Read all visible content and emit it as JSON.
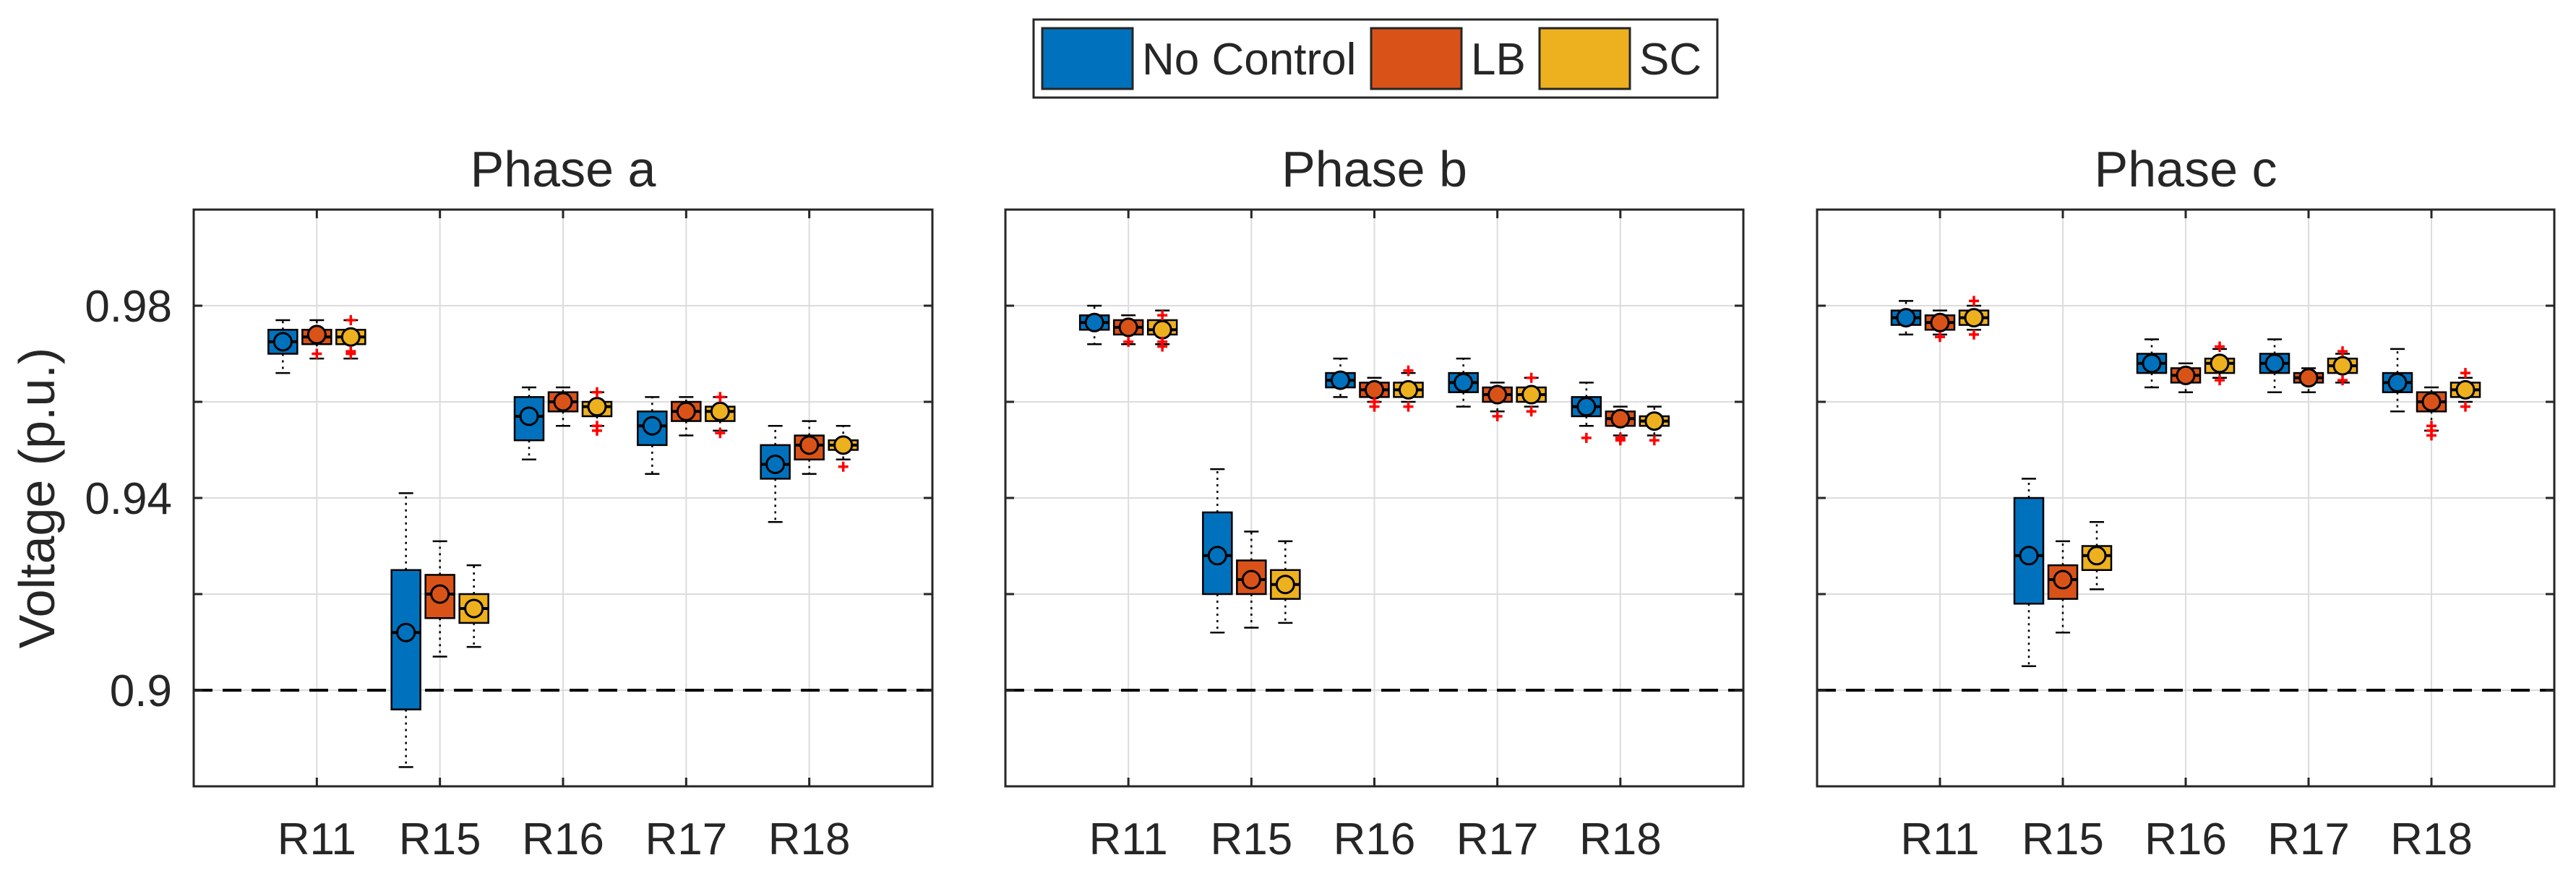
{
  "chart_data": {
    "type": "box",
    "title": "",
    "ylabel": "Voltage (p.u.)",
    "ylim": [
      0.88,
      1.0
    ],
    "yticks": [
      0.98,
      0.94,
      0.9
    ],
    "ytick_labels": [
      "0.98",
      "0.94",
      "0.9"
    ],
    "reference_line": {
      "y": 0.9,
      "style": "dashed"
    },
    "grid": true,
    "legend": {
      "placement": "top-center",
      "entries": [
        {
          "name": "No Control",
          "color": "#0072BD"
        },
        {
          "name": "LB",
          "color": "#D95319"
        },
        {
          "name": "SC",
          "color": "#EDB120"
        }
      ]
    },
    "outlier_color": "#FF0000",
    "categories": [
      "R11",
      "R15",
      "R16",
      "R17",
      "R18"
    ],
    "panels": [
      {
        "title": "Phase a",
        "series": [
          {
            "name": "No Control",
            "boxes": [
              {
                "wlo": 0.966,
                "q1": 0.97,
                "med": 0.9725,
                "q3": 0.975,
                "whi": 0.977,
                "mean": 0.9725,
                "outliers": []
              },
              {
                "wlo": 0.884,
                "q1": 0.896,
                "med": 0.912,
                "q3": 0.925,
                "whi": 0.941,
                "mean": 0.912,
                "outliers": []
              },
              {
                "wlo": 0.948,
                "q1": 0.952,
                "med": 0.957,
                "q3": 0.961,
                "whi": 0.963,
                "mean": 0.957,
                "outliers": []
              },
              {
                "wlo": 0.945,
                "q1": 0.951,
                "med": 0.955,
                "q3": 0.958,
                "whi": 0.961,
                "mean": 0.955,
                "outliers": []
              },
              {
                "wlo": 0.935,
                "q1": 0.944,
                "med": 0.947,
                "q3": 0.951,
                "whi": 0.955,
                "mean": 0.947,
                "outliers": []
              }
            ]
          },
          {
            "name": "LB",
            "boxes": [
              {
                "wlo": 0.969,
                "q1": 0.972,
                "med": 0.9735,
                "q3": 0.975,
                "whi": 0.977,
                "mean": 0.974,
                "outliers": [
                  0.97
                ]
              },
              {
                "wlo": 0.907,
                "q1": 0.915,
                "med": 0.92,
                "q3": 0.924,
                "whi": 0.931,
                "mean": 0.92,
                "outliers": []
              },
              {
                "wlo": 0.955,
                "q1": 0.958,
                "med": 0.96,
                "q3": 0.962,
                "whi": 0.963,
                "mean": 0.96,
                "outliers": []
              },
              {
                "wlo": 0.953,
                "q1": 0.956,
                "med": 0.958,
                "q3": 0.96,
                "whi": 0.961,
                "mean": 0.958,
                "outliers": []
              },
              {
                "wlo": 0.945,
                "q1": 0.948,
                "med": 0.951,
                "q3": 0.953,
                "whi": 0.956,
                "mean": 0.951,
                "outliers": []
              }
            ]
          },
          {
            "name": "SC",
            "boxes": [
              {
                "wlo": 0.969,
                "q1": 0.972,
                "med": 0.9735,
                "q3": 0.975,
                "whi": 0.977,
                "mean": 0.9735,
                "outliers": [
                  0.97,
                  0.9705,
                  0.977
                ]
              },
              {
                "wlo": 0.909,
                "q1": 0.914,
                "med": 0.917,
                "q3": 0.92,
                "whi": 0.926,
                "mean": 0.917,
                "outliers": []
              },
              {
                "wlo": 0.955,
                "q1": 0.957,
                "med": 0.959,
                "q3": 0.96,
                "whi": 0.962,
                "mean": 0.959,
                "outliers": [
                  0.954,
                  0.955,
                  0.962
                ]
              },
              {
                "wlo": 0.954,
                "q1": 0.956,
                "med": 0.958,
                "q3": 0.959,
                "whi": 0.961,
                "mean": 0.958,
                "outliers": [
                  0.9535,
                  0.961
                ]
              },
              {
                "wlo": 0.948,
                "q1": 0.95,
                "med": 0.951,
                "q3": 0.952,
                "whi": 0.955,
                "mean": 0.951,
                "outliers": [
                  0.9465
                ]
              }
            ]
          }
        ]
      },
      {
        "title": "Phase b",
        "series": [
          {
            "name": "No Control",
            "boxes": [
              {
                "wlo": 0.972,
                "q1": 0.975,
                "med": 0.9765,
                "q3": 0.978,
                "whi": 0.98,
                "mean": 0.9765,
                "outliers": []
              },
              {
                "wlo": 0.912,
                "q1": 0.92,
                "med": 0.928,
                "q3": 0.937,
                "whi": 0.946,
                "mean": 0.928,
                "outliers": []
              },
              {
                "wlo": 0.961,
                "q1": 0.963,
                "med": 0.9645,
                "q3": 0.966,
                "whi": 0.969,
                "mean": 0.9645,
                "outliers": []
              },
              {
                "wlo": 0.959,
                "q1": 0.962,
                "med": 0.964,
                "q3": 0.966,
                "whi": 0.969,
                "mean": 0.964,
                "outliers": []
              },
              {
                "wlo": 0.955,
                "q1": 0.957,
                "med": 0.959,
                "q3": 0.961,
                "whi": 0.964,
                "mean": 0.959,
                "outliers": [
                  0.9525
                ]
              }
            ]
          },
          {
            "name": "LB",
            "boxes": [
              {
                "wlo": 0.972,
                "q1": 0.974,
                "med": 0.9755,
                "q3": 0.977,
                "whi": 0.978,
                "mean": 0.9755,
                "outliers": [
                  0.9725
                ]
              },
              {
                "wlo": 0.913,
                "q1": 0.92,
                "med": 0.923,
                "q3": 0.927,
                "whi": 0.933,
                "mean": 0.923,
                "outliers": []
              },
              {
                "wlo": 0.96,
                "q1": 0.961,
                "med": 0.9625,
                "q3": 0.964,
                "whi": 0.965,
                "mean": 0.9625,
                "outliers": [
                  0.959,
                  0.96
                ]
              },
              {
                "wlo": 0.958,
                "q1": 0.96,
                "med": 0.9615,
                "q3": 0.963,
                "whi": 0.964,
                "mean": 0.9615,
                "outliers": [
                  0.957
                ]
              },
              {
                "wlo": 0.953,
                "q1": 0.955,
                "med": 0.9565,
                "q3": 0.958,
                "whi": 0.959,
                "mean": 0.9565,
                "outliers": [
                  0.952,
                  0.9525
                ]
              }
            ]
          },
          {
            "name": "SC",
            "boxes": [
              {
                "wlo": 0.972,
                "q1": 0.974,
                "med": 0.975,
                "q3": 0.977,
                "whi": 0.979,
                "mean": 0.975,
                "outliers": [
                  0.9715,
                  0.9725,
                  0.978
                ]
              },
              {
                "wlo": 0.914,
                "q1": 0.919,
                "med": 0.922,
                "q3": 0.925,
                "whi": 0.931,
                "mean": 0.922,
                "outliers": []
              },
              {
                "wlo": 0.96,
                "q1": 0.961,
                "med": 0.9625,
                "q3": 0.964,
                "whi": 0.966,
                "mean": 0.9625,
                "outliers": [
                  0.959,
                  0.9665
                ]
              },
              {
                "wlo": 0.959,
                "q1": 0.96,
                "med": 0.9615,
                "q3": 0.963,
                "whi": 0.965,
                "mean": 0.9615,
                "outliers": [
                  0.958,
                  0.965
                ]
              },
              {
                "wlo": 0.953,
                "q1": 0.955,
                "med": 0.956,
                "q3": 0.957,
                "whi": 0.959,
                "mean": 0.956,
                "outliers": [
                  0.952
                ]
              }
            ]
          }
        ]
      },
      {
        "title": "Phase c",
        "series": [
          {
            "name": "No Control",
            "boxes": [
              {
                "wlo": 0.974,
                "q1": 0.976,
                "med": 0.9775,
                "q3": 0.979,
                "whi": 0.981,
                "mean": 0.9775,
                "outliers": []
              },
              {
                "wlo": 0.905,
                "q1": 0.918,
                "med": 0.928,
                "q3": 0.94,
                "whi": 0.944,
                "mean": 0.928,
                "outliers": []
              },
              {
                "wlo": 0.963,
                "q1": 0.966,
                "med": 0.968,
                "q3": 0.97,
                "whi": 0.973,
                "mean": 0.968,
                "outliers": []
              },
              {
                "wlo": 0.962,
                "q1": 0.966,
                "med": 0.968,
                "q3": 0.97,
                "whi": 0.973,
                "mean": 0.968,
                "outliers": []
              },
              {
                "wlo": 0.958,
                "q1": 0.962,
                "med": 0.964,
                "q3": 0.966,
                "whi": 0.971,
                "mean": 0.964,
                "outliers": []
              }
            ]
          },
          {
            "name": "LB",
            "boxes": [
              {
                "wlo": 0.974,
                "q1": 0.975,
                "med": 0.9765,
                "q3": 0.978,
                "whi": 0.979,
                "mean": 0.9765,
                "outliers": [
                  0.9735
                ]
              },
              {
                "wlo": 0.912,
                "q1": 0.919,
                "med": 0.923,
                "q3": 0.926,
                "whi": 0.931,
                "mean": 0.923,
                "outliers": []
              },
              {
                "wlo": 0.962,
                "q1": 0.964,
                "med": 0.9655,
                "q3": 0.967,
                "whi": 0.968,
                "mean": 0.9655,
                "outliers": []
              },
              {
                "wlo": 0.962,
                "q1": 0.964,
                "med": 0.965,
                "q3": 0.966,
                "whi": 0.967,
                "mean": 0.965,
                "outliers": []
              },
              {
                "wlo": 0.954,
                "q1": 0.958,
                "med": 0.96,
                "q3": 0.962,
                "whi": 0.963,
                "mean": 0.96,
                "outliers": [
                  0.953,
                  0.954,
                  0.955
                ]
              }
            ]
          },
          {
            "name": "SC",
            "boxes": [
              {
                "wlo": 0.975,
                "q1": 0.976,
                "med": 0.9775,
                "q3": 0.979,
                "whi": 0.98,
                "mean": 0.9775,
                "outliers": [
                  0.974,
                  0.981
                ]
              },
              {
                "wlo": 0.921,
                "q1": 0.925,
                "med": 0.928,
                "q3": 0.93,
                "whi": 0.935,
                "mean": 0.928,
                "outliers": []
              },
              {
                "wlo": 0.965,
                "q1": 0.966,
                "med": 0.968,
                "q3": 0.969,
                "whi": 0.971,
                "mean": 0.968,
                "outliers": [
                  0.9645,
                  0.9715
                ]
              },
              {
                "wlo": 0.964,
                "q1": 0.966,
                "med": 0.9675,
                "q3": 0.969,
                "whi": 0.97,
                "mean": 0.9675,
                "outliers": [
                  0.9645,
                  0.9705
                ]
              },
              {
                "wlo": 0.96,
                "q1": 0.961,
                "med": 0.9625,
                "q3": 0.964,
                "whi": 0.965,
                "mean": 0.9625,
                "outliers": [
                  0.959,
                  0.966
                ]
              }
            ]
          }
        ]
      }
    ]
  }
}
